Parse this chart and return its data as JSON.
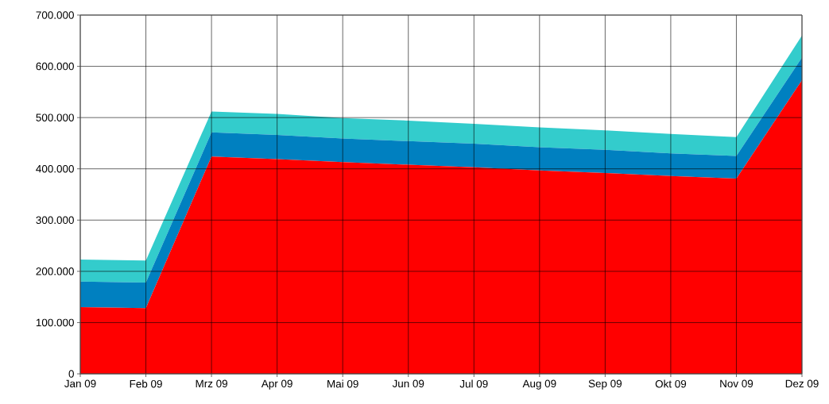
{
  "chart_data": {
    "type": "area",
    "stacked": true,
    "categories": [
      "Jan 09",
      "Feb 09",
      "Mrz 09",
      "Apr 09",
      "Mai 09",
      "Jun 09",
      "Jul 09",
      "Aug 09",
      "Sep 09",
      "Okt 09",
      "Nov 09",
      "Dez 09"
    ],
    "series": [
      {
        "color": "#ff0000",
        "values": [
          130000,
          128000,
          424000,
          419000,
          413000,
          408000,
          403000,
          397000,
          392000,
          386000,
          381000,
          573000
        ]
      },
      {
        "color": "#0080c0",
        "values": [
          50000,
          50000,
          47000,
          47000,
          46000,
          46000,
          46000,
          45000,
          45000,
          44000,
          44000,
          44000
        ]
      },
      {
        "color": "#33cccc",
        "values": [
          43000,
          43000,
          41000,
          41000,
          40000,
          40000,
          39000,
          39000,
          38000,
          38000,
          37000,
          43000
        ]
      }
    ],
    "ylim": [
      0,
      700000
    ],
    "yticks": [
      0,
      {
        "value": 100000,
        "label": "100.000"
      },
      {
        "value": 200000,
        "label": "200.000"
      },
      {
        "value": 300000,
        "label": "300.000"
      },
      {
        "value": 400000,
        "label": "400.000"
      },
      {
        "value": 500000,
        "label": "500.000"
      },
      {
        "value": 600000,
        "label": "600.000"
      },
      {
        "value": 700000,
        "label": "700.000"
      }
    ],
    "grid": true
  }
}
